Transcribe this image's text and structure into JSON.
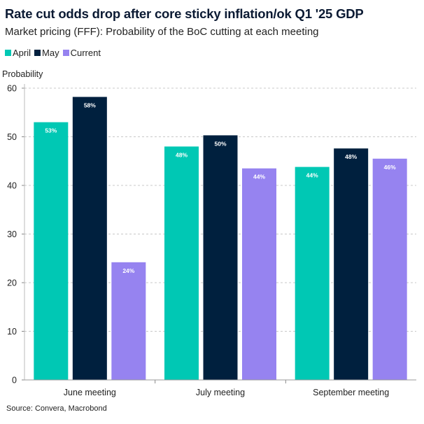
{
  "chart_data": {
    "type": "bar",
    "title": "Rate cut odds drop after core sticky inflation/ok Q1 '25 GDP",
    "subtitle": "Market pricing (FFF): Probability of the BoC cutting at each meeting",
    "ylabel": "Probability",
    "xlabel": "",
    "ylim": [
      0,
      60
    ],
    "yticks": [
      0,
      10,
      20,
      30,
      40,
      50,
      60
    ],
    "grid": true,
    "legend_placement": "top-left",
    "categories": [
      "June meeting",
      "July meeting",
      "September meeting"
    ],
    "series": [
      {
        "name": "April",
        "color": "#00c8b4",
        "values": [
          53,
          48,
          43.8
        ],
        "labels": [
          "53%",
          "48%",
          "44%"
        ]
      },
      {
        "name": "May",
        "color": "#00203e",
        "values": [
          58.2,
          50.3,
          47.6
        ],
        "labels": [
          "58%",
          "50%",
          "48%"
        ]
      },
      {
        "name": "Current",
        "color": "#9683f0",
        "values": [
          24.2,
          43.5,
          45.5
        ],
        "labels": [
          "24%",
          "44%",
          "46%"
        ]
      }
    ],
    "source": "Source: Convera, Macrobond"
  }
}
